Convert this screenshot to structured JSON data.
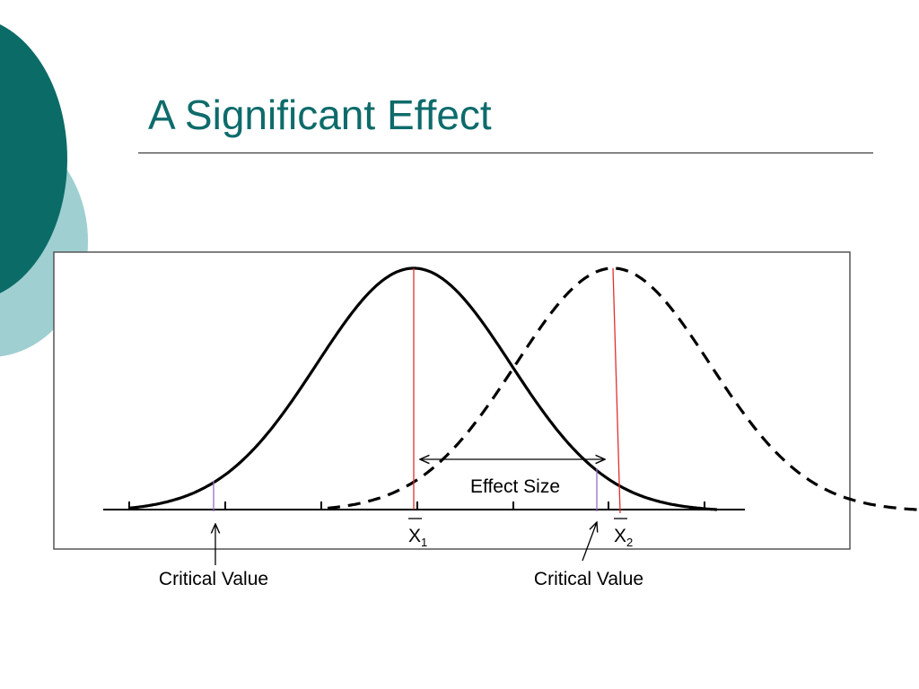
{
  "slide": {
    "title": "A Significant Effect"
  },
  "diagram": {
    "effect_size_label": "Effect Size",
    "mean1": {
      "symbol": "X",
      "subscript": "1"
    },
    "mean2": {
      "symbol": "X",
      "subscript": "2"
    },
    "critical_value_left_label": "Critical Value",
    "critical_value_right_label": "Critical Value"
  },
  "colors": {
    "title": "#0e6b6b",
    "accent_dark": "#0b6b67",
    "accent_light": "#9fcfd1",
    "mean_line": "#e03030",
    "critical_line": "#9370c8"
  }
}
